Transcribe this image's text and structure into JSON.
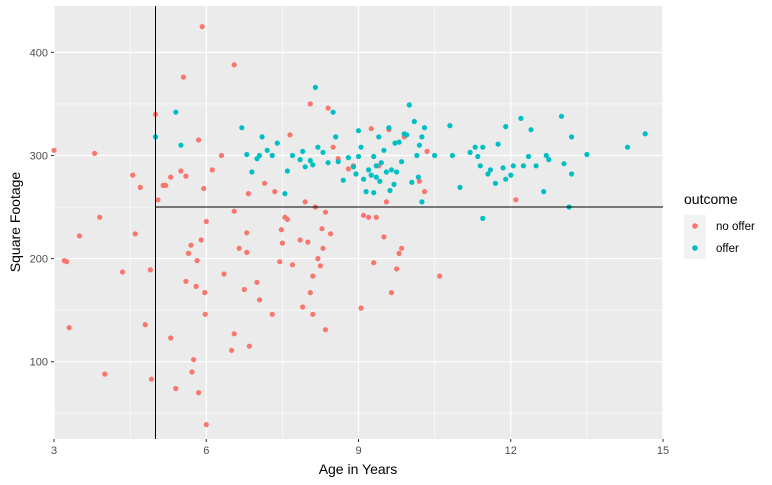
{
  "chart_data": {
    "type": "scatter",
    "xlabel": "Age in Years",
    "ylabel": "Square Footage",
    "xlim": [
      3,
      15
    ],
    "ylim": [
      25,
      445
    ],
    "x_ticks": [
      3,
      6,
      9,
      12,
      15
    ],
    "y_ticks": [
      100,
      200,
      300,
      400
    ],
    "grid": true,
    "legend_position": "right",
    "legend_title": "outcome",
    "reference_lines": {
      "vertical_x": 5,
      "horizontal_y": 250
    },
    "series": [
      {
        "name": "no offer",
        "color": "#F8766D",
        "points": [
          [
            3.0,
            305
          ],
          [
            3.2,
            198
          ],
          [
            3.25,
            197
          ],
          [
            3.3,
            133
          ],
          [
            3.5,
            222
          ],
          [
            3.8,
            302
          ],
          [
            3.9,
            240
          ],
          [
            4.0,
            88
          ],
          [
            4.35,
            187
          ],
          [
            4.55,
            281
          ],
          [
            4.6,
            224
          ],
          [
            4.7,
            269
          ],
          [
            4.8,
            136
          ],
          [
            4.9,
            189
          ],
          [
            4.92,
            83
          ],
          [
            5.0,
            340
          ],
          [
            5.05,
            257
          ],
          [
            5.15,
            271
          ],
          [
            5.2,
            271
          ],
          [
            5.3,
            279
          ],
          [
            5.3,
            123
          ],
          [
            5.4,
            74
          ],
          [
            5.5,
            285
          ],
          [
            5.55,
            376
          ],
          [
            5.6,
            178
          ],
          [
            5.6,
            280
          ],
          [
            5.65,
            205
          ],
          [
            5.7,
            213
          ],
          [
            5.72,
            90
          ],
          [
            5.75,
            102
          ],
          [
            5.8,
            173
          ],
          [
            5.82,
            198
          ],
          [
            5.85,
            315
          ],
          [
            5.85,
            70
          ],
          [
            5.9,
            218
          ],
          [
            5.92,
            425
          ],
          [
            5.95,
            268
          ],
          [
            5.97,
            167
          ],
          [
            5.98,
            146
          ],
          [
            6.0,
            236
          ],
          [
            6.0,
            39
          ],
          [
            6.12,
            286
          ],
          [
            6.3,
            300
          ],
          [
            6.35,
            185
          ],
          [
            6.5,
            111
          ],
          [
            6.55,
            127
          ],
          [
            6.55,
            246
          ],
          [
            6.55,
            388
          ],
          [
            6.65,
            210
          ],
          [
            6.75,
            170
          ],
          [
            6.8,
            225
          ],
          [
            6.8,
            206
          ],
          [
            6.83,
            263
          ],
          [
            6.85,
            115
          ],
          [
            7.0,
            177
          ],
          [
            7.05,
            160
          ],
          [
            7.15,
            273
          ],
          [
            7.3,
            146
          ],
          [
            7.35,
            265
          ],
          [
            7.45,
            197
          ],
          [
            7.48,
            228
          ],
          [
            7.5,
            215
          ],
          [
            7.55,
            240
          ],
          [
            7.6,
            238
          ],
          [
            7.65,
            320
          ],
          [
            7.7,
            194
          ],
          [
            7.85,
            218
          ],
          [
            7.9,
            153
          ],
          [
            7.95,
            255
          ],
          [
            8.0,
            216
          ],
          [
            8.05,
            350
          ],
          [
            8.05,
            167
          ],
          [
            8.1,
            146
          ],
          [
            8.1,
            183
          ],
          [
            8.15,
            250
          ],
          [
            8.2,
            200
          ],
          [
            8.25,
            193
          ],
          [
            8.28,
            229
          ],
          [
            8.3,
            210
          ],
          [
            8.35,
            245
          ],
          [
            8.35,
            131
          ],
          [
            8.4,
            346
          ],
          [
            8.45,
            224
          ],
          [
            8.5,
            308
          ],
          [
            8.6,
            297
          ],
          [
            8.8,
            287
          ],
          [
            8.9,
            290
          ],
          [
            9.1,
            242
          ],
          [
            9.05,
            152
          ],
          [
            9.2,
            240
          ],
          [
            9.25,
            326
          ],
          [
            9.3,
            196
          ],
          [
            9.35,
            240
          ],
          [
            9.4,
            290
          ],
          [
            9.5,
            221
          ],
          [
            9.55,
            255
          ],
          [
            9.6,
            325
          ],
          [
            9.65,
            167
          ],
          [
            9.75,
            190
          ],
          [
            9.8,
            205
          ],
          [
            9.85,
            210
          ],
          [
            9.9,
            318
          ],
          [
            10.2,
            275
          ],
          [
            10.3,
            265
          ],
          [
            10.35,
            304
          ],
          [
            10.6,
            183
          ],
          [
            12.1,
            257
          ]
        ]
      },
      {
        "name": "offer",
        "color": "#00BFC4",
        "points": [
          [
            5.0,
            318
          ],
          [
            5.4,
            342
          ],
          [
            5.5,
            310
          ],
          [
            6.7,
            327
          ],
          [
            6.8,
            301
          ],
          [
            6.9,
            284
          ],
          [
            7.0,
            297
          ],
          [
            7.05,
            300
          ],
          [
            7.1,
            318
          ],
          [
            7.2,
            305
          ],
          [
            7.3,
            300
          ],
          [
            7.4,
            312
          ],
          [
            7.55,
            263
          ],
          [
            7.6,
            285
          ],
          [
            7.7,
            300
          ],
          [
            7.85,
            296
          ],
          [
            7.9,
            304
          ],
          [
            7.95,
            289
          ],
          [
            8.05,
            295
          ],
          [
            8.1,
            291
          ],
          [
            8.15,
            366
          ],
          [
            8.2,
            308
          ],
          [
            8.3,
            303
          ],
          [
            8.4,
            293
          ],
          [
            8.5,
            342
          ],
          [
            8.55,
            318
          ],
          [
            8.6,
            294
          ],
          [
            8.7,
            276
          ],
          [
            8.8,
            298
          ],
          [
            8.9,
            289
          ],
          [
            8.95,
            282
          ],
          [
            9.0,
            324
          ],
          [
            9.0,
            299
          ],
          [
            9.05,
            308
          ],
          [
            9.1,
            277
          ],
          [
            9.15,
            265
          ],
          [
            9.2,
            286
          ],
          [
            9.25,
            281
          ],
          [
            9.3,
            264
          ],
          [
            9.3,
            299
          ],
          [
            9.35,
            290
          ],
          [
            9.35,
            279
          ],
          [
            9.4,
            318
          ],
          [
            9.42,
            275
          ],
          [
            9.45,
            293
          ],
          [
            9.5,
            305
          ],
          [
            9.55,
            284
          ],
          [
            9.6,
            327
          ],
          [
            9.62,
            266
          ],
          [
            9.65,
            286
          ],
          [
            9.7,
            272
          ],
          [
            9.72,
            312
          ],
          [
            9.75,
            284
          ],
          [
            9.8,
            313
          ],
          [
            9.85,
            294
          ],
          [
            9.9,
            321
          ],
          [
            9.95,
            320
          ],
          [
            10.0,
            349
          ],
          [
            10.05,
            274
          ],
          [
            10.1,
            333
          ],
          [
            10.15,
            300
          ],
          [
            10.18,
            279
          ],
          [
            10.2,
            310
          ],
          [
            10.25,
            318
          ],
          [
            10.25,
            255
          ],
          [
            10.3,
            327
          ],
          [
            10.5,
            300
          ],
          [
            10.8,
            329
          ],
          [
            10.85,
            300
          ],
          [
            11.0,
            269
          ],
          [
            11.2,
            303
          ],
          [
            11.3,
            308
          ],
          [
            11.35,
            299
          ],
          [
            11.4,
            290
          ],
          [
            11.45,
            308
          ],
          [
            11.45,
            239
          ],
          [
            11.55,
            282
          ],
          [
            11.6,
            286
          ],
          [
            11.7,
            273
          ],
          [
            11.75,
            311
          ],
          [
            11.85,
            288
          ],
          [
            11.9,
            328
          ],
          [
            11.9,
            277
          ],
          [
            12.0,
            281
          ],
          [
            12.05,
            290
          ],
          [
            12.2,
            336
          ],
          [
            12.25,
            290
          ],
          [
            12.35,
            299
          ],
          [
            12.4,
            325
          ],
          [
            12.5,
            290
          ],
          [
            12.65,
            265
          ],
          [
            12.7,
            300
          ],
          [
            12.75,
            296
          ],
          [
            13.0,
            338
          ],
          [
            13.05,
            292
          ],
          [
            13.15,
            250
          ],
          [
            13.2,
            318
          ],
          [
            13.2,
            282
          ],
          [
            13.5,
            301
          ],
          [
            14.3,
            308
          ],
          [
            14.65,
            321
          ]
        ]
      }
    ]
  }
}
